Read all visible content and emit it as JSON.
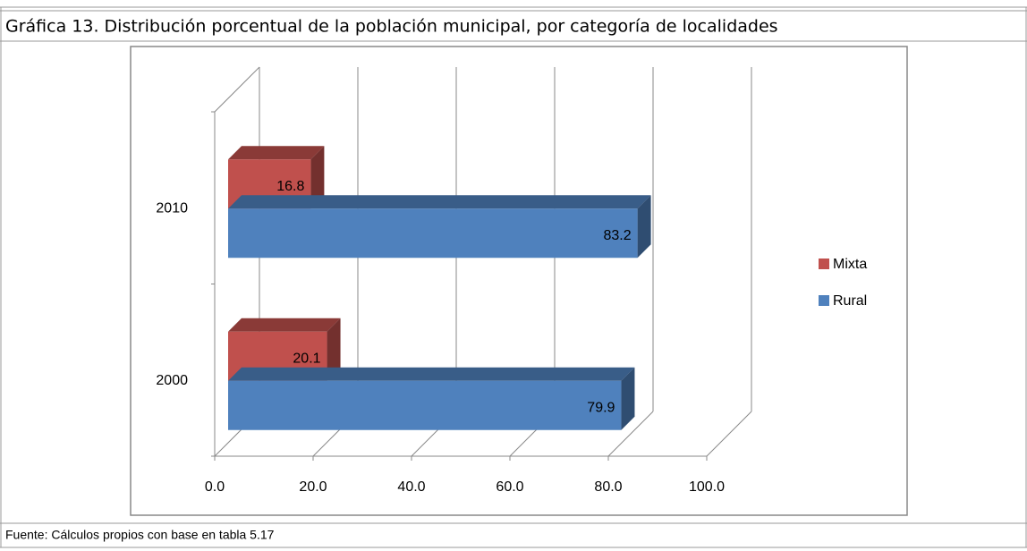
{
  "chart_data": {
    "type": "bar",
    "orientation": "horizontal",
    "three_d": true,
    "title": "Gráfica 13. Distribución porcentual de la población municipal, por categoría de localidades",
    "source": "Fuente: Cálculos propios con base en tabla 5.17",
    "categories": [
      "2000",
      "2010"
    ],
    "series": [
      {
        "name": "Mixta",
        "color": "#c0504d",
        "values": [
          20.1,
          16.8
        ]
      },
      {
        "name": "Rural",
        "color": "#4f81bd",
        "values": [
          79.9,
          83.2
        ]
      }
    ],
    "xlim": [
      0,
      100
    ],
    "xticks": [
      {
        "value": 0,
        "label": "0.0"
      },
      {
        "value": 20,
        "label": "20.0"
      },
      {
        "value": 40,
        "label": "40.0"
      },
      {
        "value": 60,
        "label": "60.0"
      },
      {
        "value": 80,
        "label": "80.0"
      },
      {
        "value": 100,
        "label": "100.0"
      }
    ],
    "grid": true,
    "legend": "right"
  }
}
